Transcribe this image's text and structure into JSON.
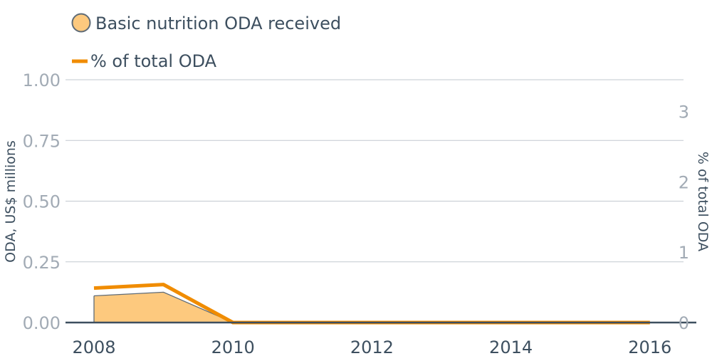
{
  "chart_data": {
    "type": "area",
    "x": [
      2008,
      2009,
      2010,
      2011,
      2012,
      2013,
      2014,
      2015,
      2016
    ],
    "xticks": [
      "2008",
      "2010",
      "2012",
      "2014",
      "2016"
    ],
    "ylabel": "ODA, US$ millions",
    "y2label": "% of total ODA",
    "ylim": [
      0,
      1
    ],
    "y2lim": [
      0,
      3.45
    ],
    "yticks": [
      "0.00",
      "0.25",
      "0.50",
      "0.75",
      "1.00"
    ],
    "y2ticks": [
      "0",
      "1",
      "2",
      "3"
    ],
    "grid": true,
    "legend_position": "top-left",
    "series": [
      {
        "name": "Basic nutrition ODA received",
        "axis": "left",
        "type": "area",
        "color": "#fdc97e",
        "stroke": "#5f6b76",
        "values": [
          0.11,
          0.125,
          0,
          0,
          0,
          0,
          0,
          0,
          0
        ]
      },
      {
        "name": "% of total ODA",
        "axis": "right",
        "type": "line",
        "color": "#f08c00",
        "values": [
          0.49,
          0.54,
          0,
          0,
          0,
          0,
          0,
          0,
          0
        ]
      }
    ]
  }
}
